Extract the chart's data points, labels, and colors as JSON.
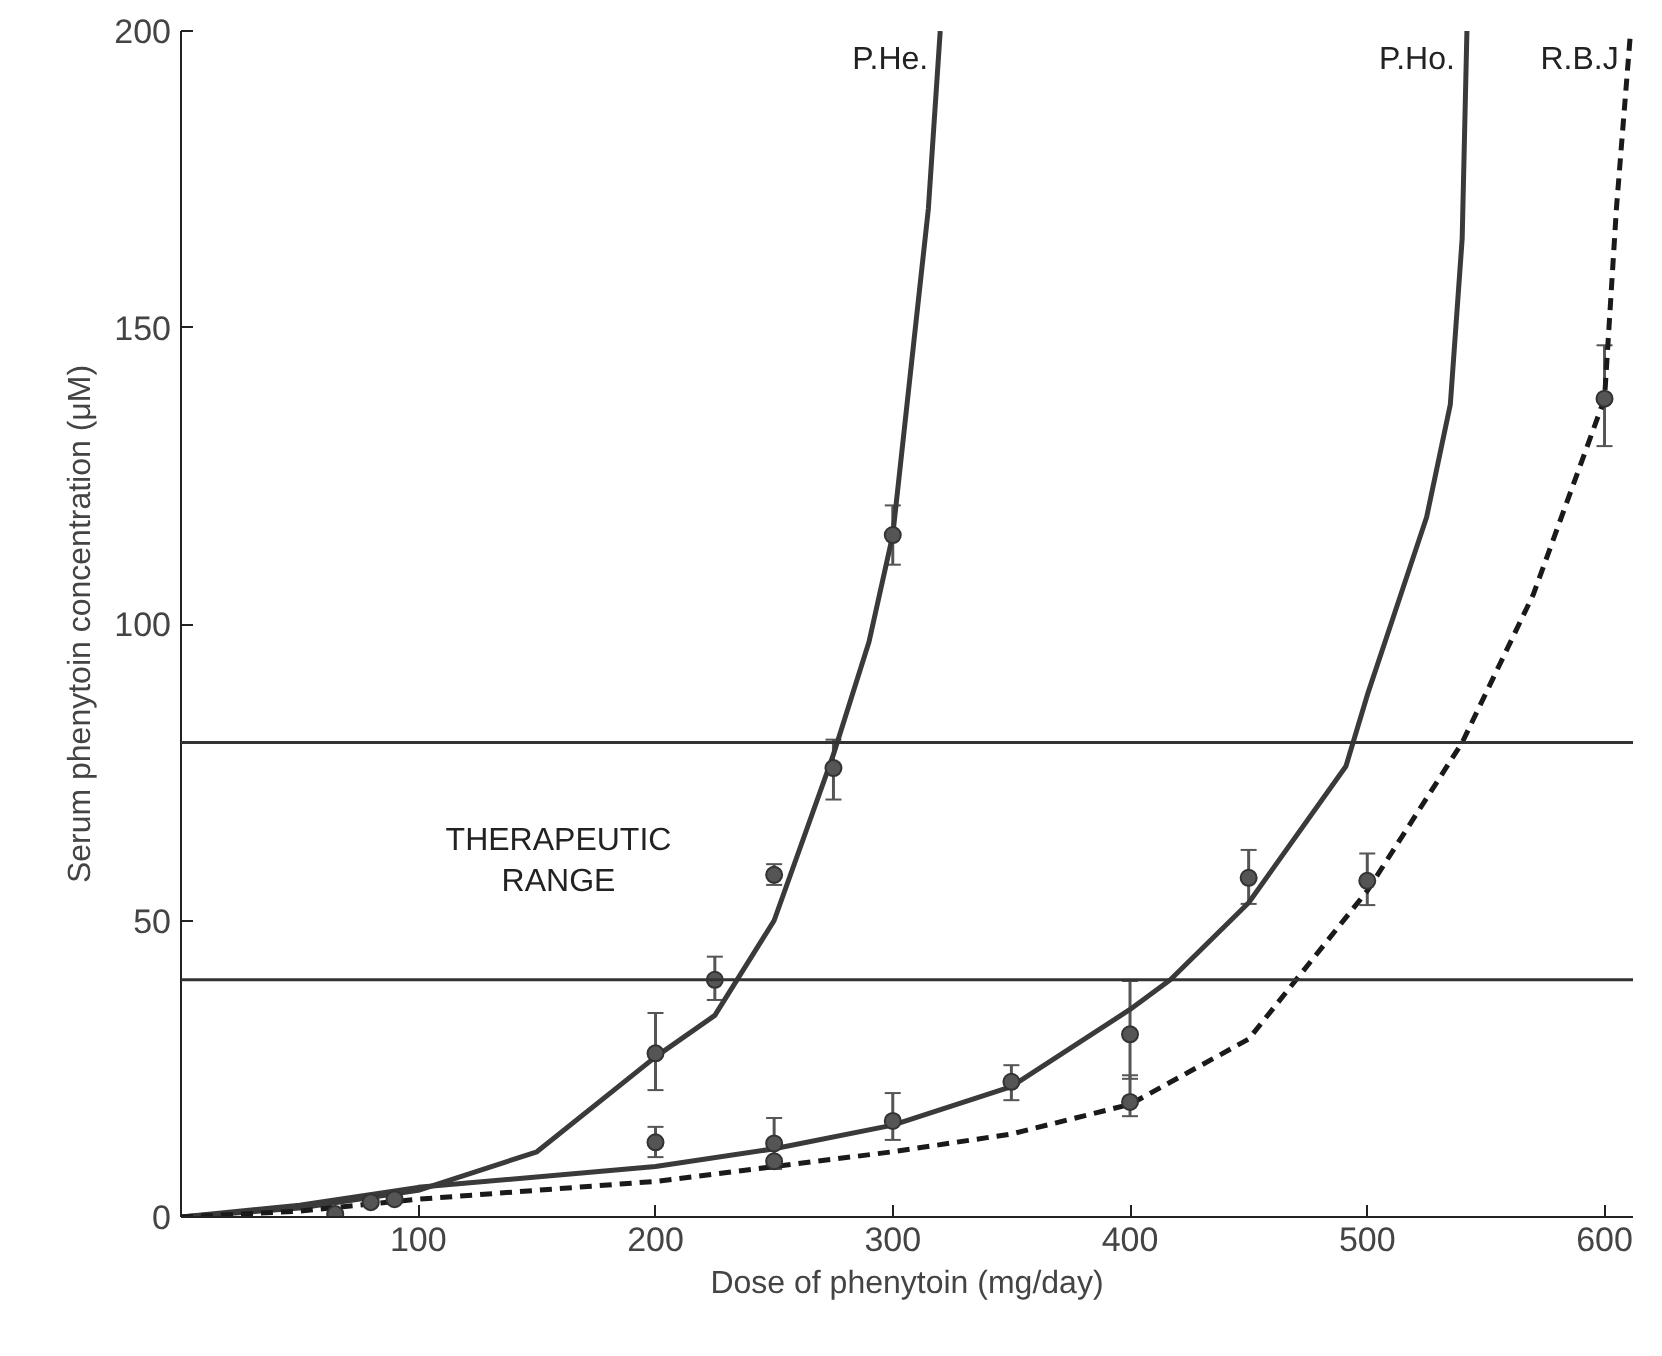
{
  "chart_data": {
    "type": "line",
    "xlabel": "Dose of phenytoin (mg/day)",
    "ylabel": "Serum phenytoin concentration (μM)",
    "xlim": [
      0,
      612
    ],
    "ylim": [
      0,
      200
    ],
    "xticks": [
      100,
      200,
      300,
      400,
      500,
      600
    ],
    "yticks": [
      0,
      50,
      100,
      150,
      200
    ],
    "grid": false,
    "series": [
      {
        "name": "P.He.",
        "color": "#3a3a3a",
        "line_style": "solid",
        "x": [
          0,
          50,
          100,
          150,
          200,
          225,
          250,
          275,
          290,
          300,
          306,
          315,
          320
        ],
        "values": [
          0,
          1.5,
          4.5,
          11,
          27,
          34,
          50,
          78,
          97,
          115,
          137,
          170,
          200
        ]
      },
      {
        "name": "P.Ho.",
        "color": "#3a3a3a",
        "line_style": "solid",
        "x": [
          0,
          50,
          100,
          200,
          250,
          300,
          350,
          400,
          417,
          450,
          491,
          500,
          510,
          525,
          535,
          540,
          542
        ],
        "values": [
          0,
          2,
          5,
          8.5,
          11.5,
          15.5,
          22,
          35,
          40,
          53,
          76,
          88,
          100,
          118,
          137,
          165,
          200
        ]
      },
      {
        "name": "R.B.J",
        "color": "#1a1a1a",
        "line_style": "dashed",
        "x": [
          0,
          50,
          100,
          200,
          250,
          300,
          350,
          400,
          450,
          470,
          500,
          540,
          570,
          600,
          605,
          611
        ],
        "values": [
          0,
          1,
          3,
          6,
          8.5,
          11,
          14,
          19,
          30,
          40,
          55,
          80,
          105,
          138,
          170,
          200
        ]
      },
      {
        "type": "scatter",
        "marker": "circle",
        "color": "#555555",
        "x": [
          65,
          80,
          90,
          200,
          225,
          250,
          275,
          300
        ],
        "values": [
          0.5,
          2.5,
          3,
          27.6,
          40,
          57.7,
          75.7,
          115
        ],
        "errors": [
          null,
          null,
          null,
          [
            21.4,
            34.4
          ],
          [
            36.6,
            43.9
          ],
          [
            56,
            59.5
          ],
          [
            70.4,
            80.5
          ],
          [
            110,
            120
          ]
        ]
      },
      {
        "type": "scatter",
        "marker": "circle",
        "color": "#555555",
        "x": [
          200,
          250,
          300,
          350,
          400,
          450
        ],
        "values": [
          12.6,
          12.4,
          16.2,
          22.8,
          30.8,
          57.2
        ],
        "errors": [
          [
            10.1,
            15.2
          ],
          [
            8.1,
            16.7
          ],
          [
            13,
            20.9
          ],
          [
            19.7,
            25.6
          ],
          [
            23.3,
            39.8
          ],
          [
            52.8,
            61.9
          ]
        ]
      },
      {
        "type": "scatter",
        "marker": "circle",
        "color": "#555555",
        "x": [
          250,
          400,
          500,
          600
        ],
        "values": [
          9.4,
          19.4,
          56.7,
          138
        ],
        "errors": [
          null,
          [
            17,
            23.9
          ],
          [
            52.6,
            61.3
          ],
          [
            130,
            147
          ]
        ]
      }
    ],
    "ref_lines": [
      {
        "axis": "y",
        "value": 40,
        "color": "#333333"
      },
      {
        "axis": "y",
        "value": 80,
        "color": "#333333"
      }
    ],
    "annotations": [
      "THERAPEUTIC\nRANGE"
    ]
  }
}
